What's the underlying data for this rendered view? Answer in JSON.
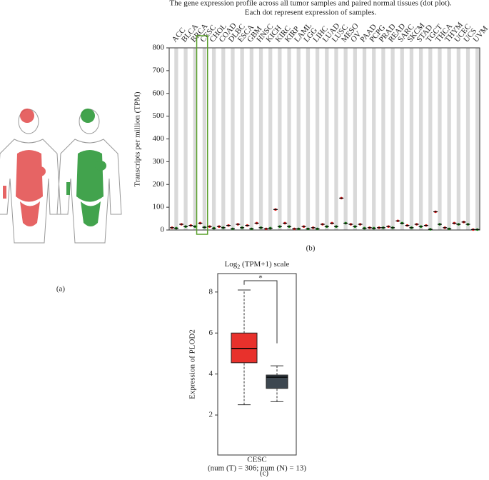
{
  "panels": [
    "(a)",
    "(b)",
    "(c)"
  ],
  "chart_data": [
    {
      "type": "dot",
      "title": "The gene expression profile across all tumor samples and paired normal tissues (dot plot).",
      "subtitle": "Each dot represent expression of samples.",
      "y_label": "Transcripts per million (TPM)",
      "categories": [
        "ACC",
        "BLCA",
        "BRCA",
        "CESC",
        "CHOL",
        "COAD",
        "DLBC",
        "ESCA",
        "GBM",
        "HNSC",
        "KICH",
        "KIRC",
        "KIRP",
        "LAML",
        "LGG",
        "LIHC",
        "LUAD",
        "LUSC",
        "MESO",
        "OV",
        "PAAD",
        "PCPG",
        "PRAD",
        "READ",
        "SARC",
        "SKCM",
        "STAD",
        "TGCT",
        "THCA",
        "THYM",
        "UCEC",
        "UCS",
        "UVM"
      ],
      "label_colors": [
        "#222",
        "#222",
        "#222",
        "#e02020",
        "#222",
        "#222",
        "#e02020",
        "#e02020",
        "#e02020",
        "#e02020",
        "#222",
        "#e02020",
        "#e02020",
        "#222",
        "#e02020",
        "#222",
        "#222",
        "#e02020",
        "#222",
        "#222",
        "#e02020",
        "#222",
        "#222",
        "#222",
        "#222",
        "#e02020",
        "#222",
        "#e02020",
        "#222",
        "#e02020",
        "#222",
        "#222",
        "#222"
      ],
      "series": [
        {
          "color": "#e02020",
          "values": [
            10,
            25,
            20,
            30,
            15,
            15,
            20,
            25,
            20,
            30,
            5,
            90,
            30,
            5,
            15,
            10,
            25,
            30,
            140,
            25,
            25,
            10,
            10,
            15,
            40,
            20,
            25,
            20,
            80,
            10,
            30,
            35,
            2
          ]
        },
        {
          "color": "#1a8a1a",
          "values": [
            8,
            15,
            15,
            12,
            8,
            10,
            5,
            10,
            5,
            10,
            8,
            15,
            15,
            5,
            5,
            5,
            15,
            15,
            30,
            15,
            8,
            8,
            10,
            10,
            30,
            10,
            15,
            3,
            25,
            5,
            25,
            25,
            2
          ]
        }
      ],
      "highlight": "CESC",
      "ylim": [
        0,
        800
      ],
      "yticks": [
        0,
        100,
        200,
        300,
        400,
        500,
        600,
        700,
        800
      ]
    },
    {
      "type": "box",
      "title_parts": [
        "Log",
        "2",
        " (TPM+1) scale"
      ],
      "y_label": "Expression of PLOD2",
      "categories": [
        "CESC"
      ],
      "note": "(num (T) = 306; num (N) = 13)",
      "annotation": "*",
      "boxes": [
        {
          "color": "#e8312c",
          "low": 2.5,
          "q1": 4.55,
          "median": 5.25,
          "q3": 6.0,
          "high": 8.1
        },
        {
          "color": "#3d4750",
          "low": 2.65,
          "q1": 3.3,
          "median": 3.85,
          "q3": 3.95,
          "high": 4.4
        }
      ],
      "ylim": [
        0.05,
        8.9
      ],
      "yticks": [
        2,
        4,
        6,
        8
      ]
    }
  ]
}
